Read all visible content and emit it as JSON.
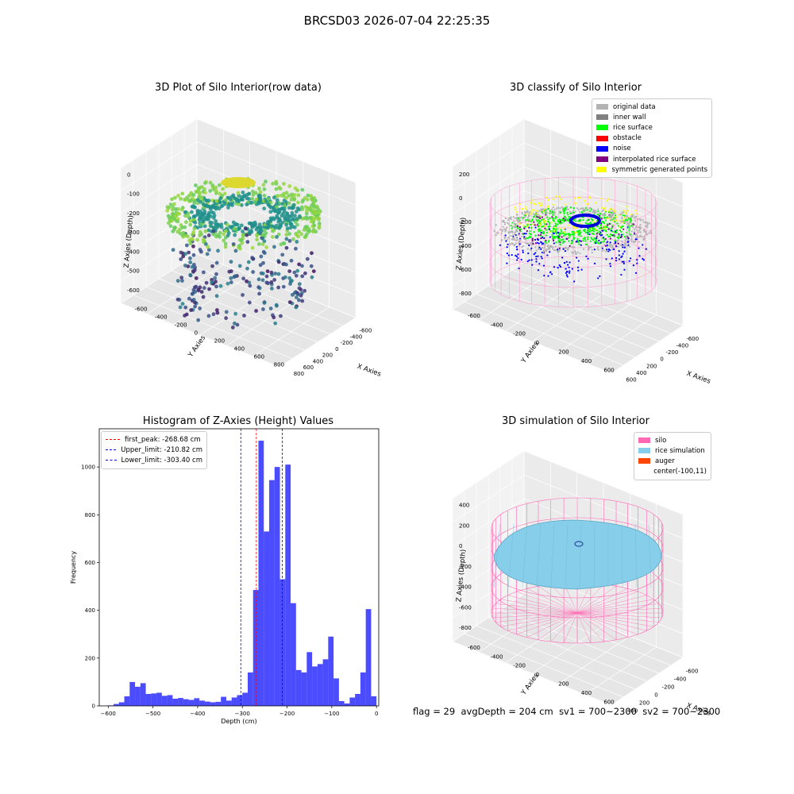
{
  "figure": {
    "suptitle": "BRCSD03 2026-07-04 22:25:35"
  },
  "panels": {
    "raw": {
      "title": "3D Plot of Silo Interior(row data)",
      "xlabel": "X Axies",
      "ylabel": "Y Axies",
      "zlabel": "Z Axies (Depth)",
      "xticks": [
        "-600",
        "-400",
        "-200",
        "0",
        "200",
        "400",
        "600",
        "800"
      ],
      "yticks": [
        "-600",
        "-400",
        "-200",
        "0",
        "200",
        "400",
        "600",
        "800"
      ],
      "zticks": [
        "0",
        "-100",
        "-200",
        "-300",
        "-400",
        "-500",
        "-600"
      ]
    },
    "classify": {
      "title": "3D classify of Silo Interior",
      "xlabel": "X Axies",
      "ylabel": "Y Axies",
      "zlabel": "Z Axies (Depth)",
      "xticks": [
        "-600",
        "-400",
        "-200",
        "0",
        "200",
        "400",
        "600"
      ],
      "yticks": [
        "-600",
        "-400",
        "-200",
        "0",
        "200",
        "400",
        "600"
      ],
      "zticks": [
        "200",
        "0",
        "-200",
        "-400",
        "-600",
        "-800"
      ],
      "legend": [
        {
          "label": "original data",
          "color": "#b3b3b3"
        },
        {
          "label": "inner wall",
          "color": "#808080"
        },
        {
          "label": "rice surface",
          "color": "#00ff00"
        },
        {
          "label": "obstacle",
          "color": "#ff0000"
        },
        {
          "label": "noise",
          "color": "#0000ff"
        },
        {
          "label": "interpolated rice surface",
          "color": "#800080"
        },
        {
          "label": "symmetric generated points",
          "color": "#ffff00"
        }
      ]
    },
    "simulation": {
      "title": "3D simulation of Silo Interior",
      "xlabel": "X Axies",
      "ylabel": "Y Axies",
      "zlabel": "Z Axies (Depth)",
      "xticks": [
        "-600",
        "-400",
        "-200",
        "0",
        "200",
        "400"
      ],
      "yticks": [
        "-600",
        "-400",
        "-200",
        "0",
        "200",
        "400",
        "600"
      ],
      "zticks": [
        "400",
        "200",
        "0",
        "-200",
        "-400",
        "-600",
        "-800"
      ],
      "legend": [
        {
          "label": "silo",
          "color": "#ff69b4"
        },
        {
          "label": "rice simulation",
          "color": "#87ceeb"
        },
        {
          "label": "auger",
          "color": "#ff4500"
        },
        {
          "label": "center(-100,11)",
          "color": ""
        }
      ]
    }
  },
  "chart_data": [
    {
      "type": "histogram",
      "title": "Histogram of Z-Axies (Height) Values",
      "xlabel": "Depth (cm)",
      "ylabel": "Frequency",
      "xlim": [
        -620,
        5
      ],
      "ylim": [
        0,
        1160
      ],
      "xticks": [
        -600,
        -500,
        -400,
        -300,
        -200,
        -100,
        0
      ],
      "yticks": [
        0,
        200,
        400,
        600,
        800,
        1000
      ],
      "bar_color": "#0000ff",
      "bin_start": -600,
      "bin_width": 12.0,
      "counts": [
        2,
        8,
        15,
        40,
        100,
        80,
        95,
        50,
        52,
        55,
        42,
        45,
        30,
        33,
        28,
        25,
        32,
        22,
        18,
        15,
        17,
        38,
        22,
        35,
        45,
        55,
        140,
        485,
        1110,
        730,
        945,
        1000,
        530,
        1010,
        430,
        150,
        140,
        225,
        165,
        175,
        195,
        290,
        115,
        20,
        10,
        35,
        50,
        140,
        405,
        40
      ],
      "lines": [
        {
          "label": "first_peak: -268.68 cm",
          "x": -268.68,
          "color": "#ff0000"
        },
        {
          "label": "Upper_limit: -210.82 cm",
          "x": -210.82,
          "color": "#0000ff"
        },
        {
          "label": "Lower_limit: -303.40 cm",
          "x": -303.4,
          "color": "#0000ff"
        }
      ]
    }
  ],
  "footer": {
    "flag": "flag = 29",
    "avg": "avgDepth = 204 cm",
    "sv1": "sv1 = 700~2300",
    "sv2": "sv2 = 700~2300"
  }
}
